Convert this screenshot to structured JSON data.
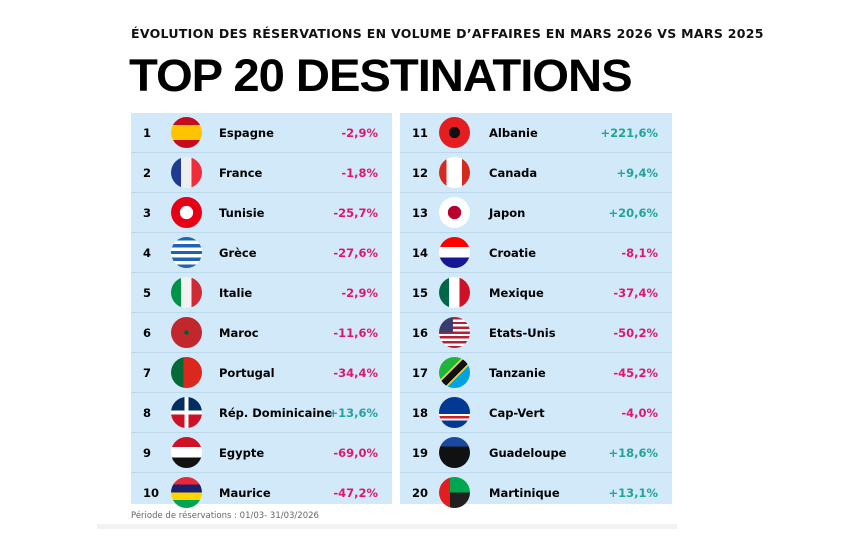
{
  "subtitle": "ÉVOLUTION DES RÉSERVATIONS EN VOLUME D’AFFAIRES EN MARS 2026 VS MARS 2025",
  "title": "TOP 20 DESTINATIONS",
  "colors": {
    "negative": "#e0156f",
    "positive": "#20a39a",
    "background": "#d2e9f9"
  },
  "rows": [
    {
      "rank": "1",
      "name": "Espagne",
      "change": "-2,9%",
      "flag": "es"
    },
    {
      "rank": "2",
      "name": "France",
      "change": "-1,8%",
      "flag": "fr"
    },
    {
      "rank": "3",
      "name": "Tunisie",
      "change": "-25,7%",
      "flag": "tn"
    },
    {
      "rank": "4",
      "name": "Grèce",
      "change": "-27,6%",
      "flag": "gr"
    },
    {
      "rank": "5",
      "name": "Italie",
      "change": "-2,9%",
      "flag": "it"
    },
    {
      "rank": "6",
      "name": "Maroc",
      "change": "-11,6%",
      "flag": "ma"
    },
    {
      "rank": "7",
      "name": "Portugal",
      "change": "-34,4%",
      "flag": "pt"
    },
    {
      "rank": "8",
      "name": "Rép. Dominicaine",
      "change": "+13,6%",
      "flag": "do"
    },
    {
      "rank": "9",
      "name": "Egypte",
      "change": "-69,0%",
      "flag": "eg"
    },
    {
      "rank": "10",
      "name": "Maurice",
      "change": "-47,2%",
      "flag": "mu"
    },
    {
      "rank": "11",
      "name": "Albanie",
      "change": "+221,6%",
      "flag": "al"
    },
    {
      "rank": "12",
      "name": "Canada",
      "change": "+9,4%",
      "flag": "ca"
    },
    {
      "rank": "13",
      "name": "Japon",
      "change": "+20,6%",
      "flag": "jp"
    },
    {
      "rank": "14",
      "name": "Croatie",
      "change": "-8,1%",
      "flag": "hr"
    },
    {
      "rank": "15",
      "name": "Mexique",
      "change": "-37,4%",
      "flag": "mx"
    },
    {
      "rank": "16",
      "name": "Etats-Unis",
      "change": "-50,2%",
      "flag": "us"
    },
    {
      "rank": "17",
      "name": "Tanzanie",
      "change": "-45,2%",
      "flag": "tz"
    },
    {
      "rank": "18",
      "name": "Cap-Vert",
      "change": "-4,0%",
      "flag": "cv"
    },
    {
      "rank": "19",
      "name": "Guadeloupe",
      "change": "+18,6%",
      "flag": "gp"
    },
    {
      "rank": "20",
      "name": "Martinique",
      "change": "+13,1%",
      "flag": "mq"
    }
  ],
  "footnote": "Période de réservations : 01/03- 31/03/2026"
}
